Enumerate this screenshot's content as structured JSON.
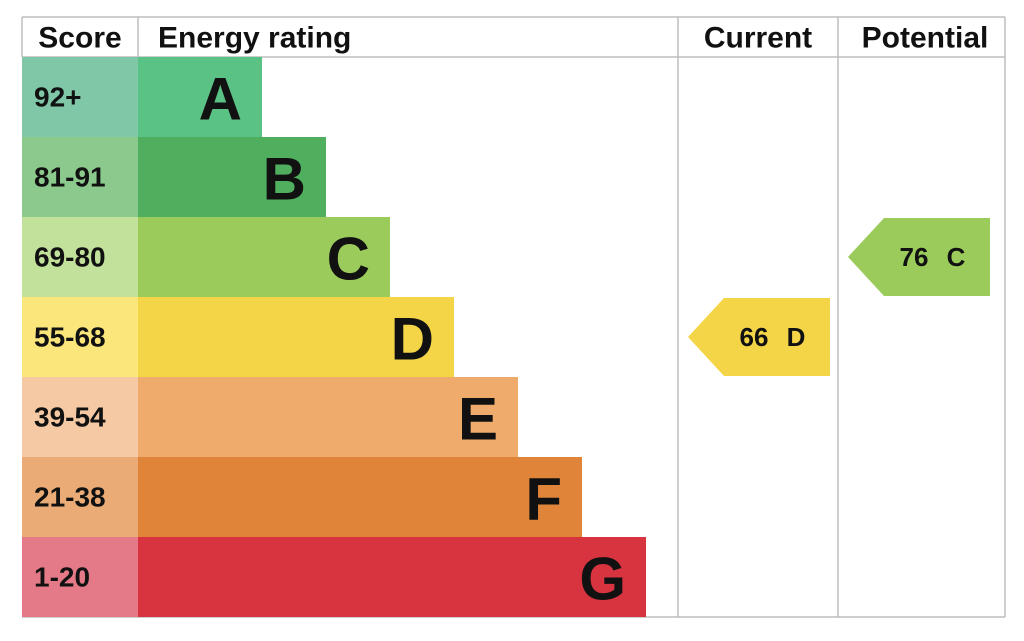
{
  "header": {
    "score": "Score",
    "rating": "Energy rating",
    "current": "Current",
    "potential": "Potential"
  },
  "bands": [
    {
      "score": "92+",
      "letter": "A",
      "color": "#5bc285",
      "score_color": "#7fc7a6"
    },
    {
      "score": "81-91",
      "letter": "B",
      "color": "#4faf5f",
      "score_color": "#8bca8c"
    },
    {
      "score": "69-80",
      "letter": "C",
      "color": "#9bcb5a",
      "score_color": "#c2e19a"
    },
    {
      "score": "55-68",
      "letter": "D",
      "color": "#f5d548",
      "score_color": "#fbe67c"
    },
    {
      "score": "39-54",
      "letter": "E",
      "color": "#efab6c",
      "score_color": "#f5c9a3"
    },
    {
      "score": "21-38",
      "letter": "F",
      "color": "#e0843a",
      "score_color": "#eaab76"
    },
    {
      "score": "1-20",
      "letter": "G",
      "color": "#d8343f",
      "score_color": "#e47a88"
    }
  ],
  "current": {
    "value": 66,
    "letter": "D"
  },
  "potential": {
    "value": 76,
    "letter": "C"
  }
}
